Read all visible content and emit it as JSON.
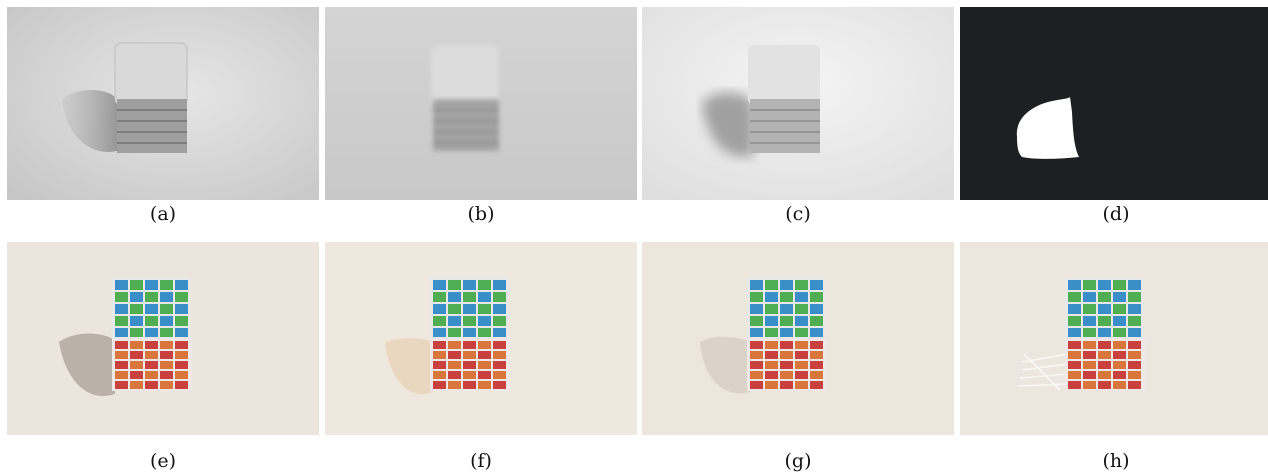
{
  "figure": {
    "captions": [
      "(a)",
      "(b)",
      "(c)",
      "(d)",
      "(e)",
      "(f)",
      "(g)",
      "(h)"
    ]
  },
  "panels": [
    {
      "kind": "shading",
      "content": "gray shaded cube with cast shadow"
    },
    {
      "kind": "shading",
      "content": "blurred gray cube, no shadow"
    },
    {
      "kind": "shading",
      "content": "bright gray cube with soft shadow"
    },
    {
      "kind": "mask",
      "content": "white shadow mask on black background"
    },
    {
      "kind": "photo",
      "content": "5x5 color cube with shadow"
    },
    {
      "kind": "photo",
      "content": "5x5 color cube, shadow removed"
    },
    {
      "kind": "photo",
      "content": "5x5 color cube, shadow removed"
    },
    {
      "kind": "photo",
      "content": "5x5 color cube, shadow removed with artifacts"
    }
  ],
  "colors": {
    "mask_bg": "#1e1f22",
    "face_top_blue": "#3a8fc9",
    "face_top_green": "#4fae52",
    "face_side_red": "#c8413e",
    "face_side_orange": "#d8763c"
  }
}
